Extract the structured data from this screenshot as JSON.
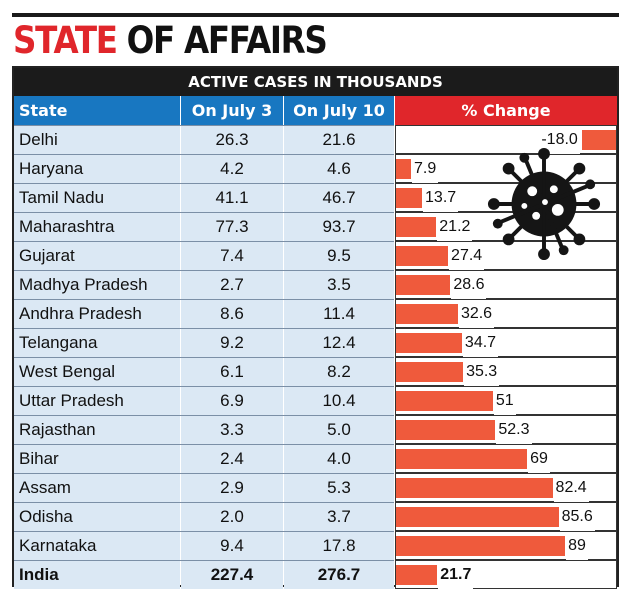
{
  "headline": {
    "word1": "STATE",
    "word2": "OF AFFAIRS"
  },
  "chart_data": {
    "type": "table",
    "title": "ACTIVE CASES IN THOUSANDS",
    "columns": [
      "State",
      "On July 3",
      "On July 10",
      "% Change"
    ],
    "rows": [
      {
        "state": "Delhi",
        "july3": "26.3",
        "july10": "21.6",
        "change": "-18.0",
        "change_value": -18.0
      },
      {
        "state": "Haryana",
        "july3": "4.2",
        "july10": "4.6",
        "change": "7.9",
        "change_value": 7.9
      },
      {
        "state": "Tamil Nadu",
        "july3": "41.1",
        "july10": "46.7",
        "change": "13.7",
        "change_value": 13.7
      },
      {
        "state": "Maharashtra",
        "july3": "77.3",
        "july10": "93.7",
        "change": "21.2",
        "change_value": 21.2
      },
      {
        "state": "Gujarat",
        "july3": "7.4",
        "july10": "9.5",
        "change": "27.4",
        "change_value": 27.4
      },
      {
        "state": "Madhya Pradesh",
        "july3": "2.7",
        "july10": "3.5",
        "change": "28.6",
        "change_value": 28.6
      },
      {
        "state": "Andhra Pradesh",
        "july3": "8.6",
        "july10": "11.4",
        "change": "32.6",
        "change_value": 32.6
      },
      {
        "state": "Telangana",
        "july3": "9.2",
        "july10": "12.4",
        "change": "34.7",
        "change_value": 34.7
      },
      {
        "state": "West Bengal",
        "july3": "6.1",
        "july10": "8.2",
        "change": "35.3",
        "change_value": 35.3
      },
      {
        "state": "Uttar Pradesh",
        "july3": "6.9",
        "july10": "10.4",
        "change": "51",
        "change_value": 51
      },
      {
        "state": "Rajasthan",
        "july3": "3.3",
        "july10": "5.0",
        "change": "52.3",
        "change_value": 52.3
      },
      {
        "state": "Bihar",
        "july3": "2.4",
        "july10": "4.0",
        "change": "69",
        "change_value": 69
      },
      {
        "state": "Assam",
        "july3": "2.9",
        "july10": "5.3",
        "change": "82.4",
        "change_value": 82.4
      },
      {
        "state": "Odisha",
        "july3": "2.0",
        "july10": "3.7",
        "change": "85.6",
        "change_value": 85.6
      },
      {
        "state": "Karnataka",
        "july3": "9.4",
        "july10": "17.8",
        "change": "89",
        "change_value": 89
      }
    ],
    "total": {
      "state": "India",
      "july3": "227.4",
      "july10": "276.7",
      "change": "21.7",
      "change_value": 21.7
    },
    "bar_color": "#ef5a3c",
    "header_color": "#1877c1",
    "change_header_color": "#e0262b",
    "row_tint": "#dbe8f4"
  },
  "decoration": {
    "icon": "coronavirus-icon"
  }
}
